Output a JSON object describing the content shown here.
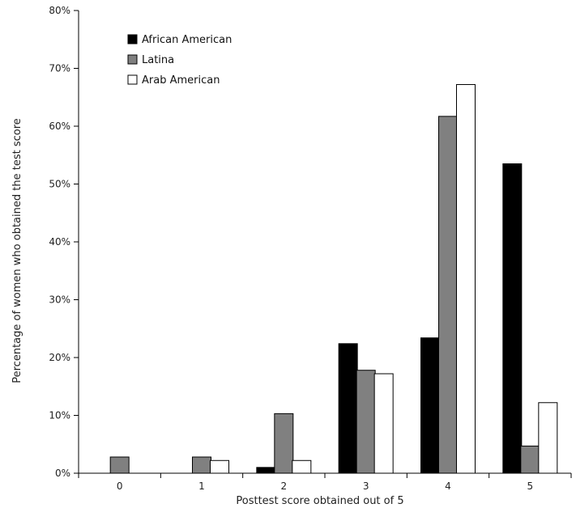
{
  "chart_data": {
    "type": "bar",
    "title": "",
    "xlabel": "Posttest score obtained out of 5",
    "ylabel": "Percentage of women who  obtained the test score",
    "categories": [
      "0",
      "1",
      "2",
      "3",
      "4",
      "5"
    ],
    "ylim": [
      0,
      80
    ],
    "yticks": [
      "0%",
      "10%",
      "20%",
      "30%",
      "40%",
      "50%",
      "60%",
      "70%",
      "80%"
    ],
    "grid": false,
    "legend_position": "top-left",
    "series": [
      {
        "name": "African American",
        "color": "#000000",
        "values": [
          0,
          0,
          1,
          22.4,
          23.4,
          53.5
        ]
      },
      {
        "name": "Latina",
        "color": "#808080",
        "values": [
          2.8,
          2.8,
          10.3,
          17.8,
          61.7,
          4.7
        ]
      },
      {
        "name": "Arab American",
        "color": "#ffffff",
        "values": [
          0,
          2.2,
          2.2,
          17.2,
          67.2,
          12.2
        ]
      }
    ]
  }
}
